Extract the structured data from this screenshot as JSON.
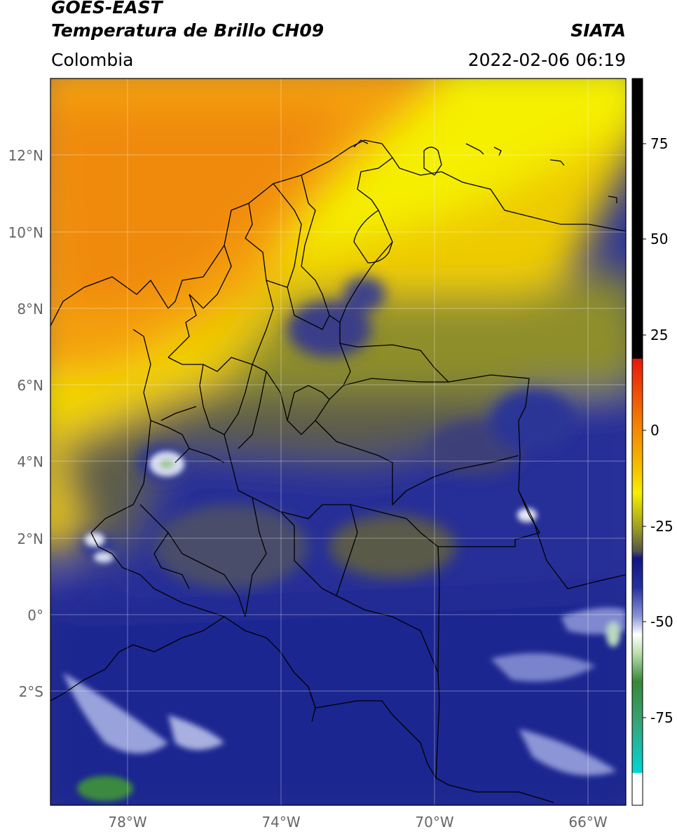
{
  "header": {
    "satellite": "GOES-EAST",
    "product": "Temperatura de Brillo CH09",
    "brand": "SIATA",
    "region": "Colombia",
    "datetime": "2022-02-06 06:19"
  },
  "axes": {
    "lat_ticks": [
      {
        "value": 12,
        "label": "12°N"
      },
      {
        "value": 10,
        "label": "10°N"
      },
      {
        "value": 8,
        "label": "8°N"
      },
      {
        "value": 6,
        "label": "6°N"
      },
      {
        "value": 4,
        "label": "4°N"
      },
      {
        "value": 2,
        "label": "2°N"
      },
      {
        "value": 0,
        "label": "0°"
      },
      {
        "value": -2,
        "label": "2°S"
      }
    ],
    "lon_ticks": [
      {
        "value": -78,
        "label": "78°W"
      },
      {
        "value": -74,
        "label": "74°W"
      },
      {
        "value": -70,
        "label": "70°W"
      },
      {
        "value": -66,
        "label": "66°W"
      }
    ],
    "lat_range": [
      -5,
      14
    ],
    "lon_range": [
      -80,
      -65
    ]
  },
  "colorbar": {
    "range": [
      -95,
      90
    ],
    "ticks": [
      {
        "value": 75,
        "label": "75"
      },
      {
        "value": 50,
        "label": "50"
      },
      {
        "value": 25,
        "label": "25"
      },
      {
        "value": 0,
        "label": "0"
      },
      {
        "value": -25,
        "label": "-25"
      },
      {
        "value": -50,
        "label": "-50"
      },
      {
        "value": -75,
        "label": "-75"
      }
    ],
    "colors": {
      "black": "#000000",
      "red": "#e8170b",
      "orange": "#f59a08",
      "yellow": "#f5ef00",
      "olive": "#9a9a26",
      "gray": "#55554a",
      "navy": "#121684",
      "blue": "#3644b6",
      "white": "#ffffff",
      "green": "#36883a",
      "cyan": "#00d6d6"
    }
  }
}
